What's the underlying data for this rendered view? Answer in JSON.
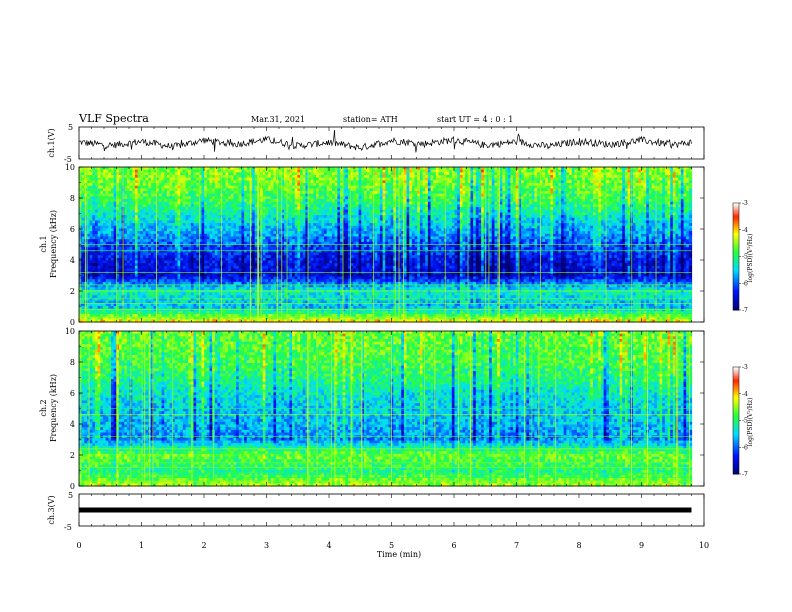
{
  "header": {
    "title": "VLF Spectra",
    "date": "Mar.31, 2021",
    "station": "station= ATH",
    "start": "start  UT  =   4 : 0  : 1"
  },
  "chart_data": [
    {
      "type": "line",
      "panel": "ch1-waveform",
      "ylabel": "ch.1(V)",
      "ylim": [
        -5,
        5
      ],
      "yticks": [
        "5",
        "-5"
      ],
      "xlim": [
        0,
        10
      ],
      "x": [
        0,
        0.5,
        1,
        1.5,
        2,
        2.5,
        3,
        3.5,
        4,
        4.5,
        5,
        5.5,
        6,
        6.5,
        7,
        7.5,
        8,
        8.5,
        9,
        9.5,
        9.8
      ],
      "values": [
        0.3,
        -0.8,
        0.5,
        -1.2,
        0.9,
        -0.4,
        1.1,
        -0.9,
        0.2,
        -1.5,
        0.8,
        -0.3,
        1.0,
        -0.7,
        0.4,
        -1.1,
        0.6,
        -0.5,
        0.9,
        -0.6,
        0.2
      ]
    },
    {
      "type": "heatmap",
      "panel": "ch1-spectrogram",
      "ylabel": "Frequency (kHz)",
      "channel_label": "ch.1",
      "ylim": [
        0,
        10
      ],
      "yticks": [
        "0",
        "2",
        "4",
        "6",
        "8",
        "10"
      ],
      "xlim": [
        0,
        10
      ],
      "zlim": [
        -7,
        -3
      ],
      "colorbar_ticks": [
        "-3",
        "-4",
        "-5",
        "-6",
        "-7"
      ],
      "colorbar_label": "log(PSD)(V²/Hz)",
      "freq_profile_khz": [
        0,
        1,
        2,
        3,
        4,
        5,
        6,
        7,
        8,
        9,
        10
      ],
      "freq_profile_level": [
        -4.0,
        -5.6,
        -5.2,
        -6.5,
        -6.4,
        -6.0,
        -5.6,
        -5.2,
        -4.8,
        -4.6,
        -4.5
      ]
    },
    {
      "type": "heatmap",
      "panel": "ch2-spectrogram",
      "ylabel": "Frequency (kHz)",
      "channel_label": "ch.2",
      "ylim": [
        0,
        10
      ],
      "yticks": [
        "0",
        "2",
        "4",
        "6",
        "8",
        "10"
      ],
      "xlim": [
        0,
        10
      ],
      "zlim": [
        -7,
        -3
      ],
      "colorbar_ticks": [
        "-3",
        "-4",
        "-5",
        "-6",
        "-7"
      ],
      "colorbar_label": "log(PSD)(V²/Hz)",
      "freq_profile_khz": [
        0,
        1,
        2,
        3,
        4,
        5,
        6,
        7,
        8,
        9,
        10
      ],
      "freq_profile_level": [
        -4.4,
        -5.0,
        -4.6,
        -5.8,
        -5.6,
        -5.5,
        -5.3,
        -5.0,
        -4.8,
        -4.7,
        -4.6
      ]
    },
    {
      "type": "line",
      "panel": "ch3-waveform",
      "ylabel": "ch.3(V)",
      "ylim": [
        -5,
        5
      ],
      "yticks": [
        "5",
        "-5"
      ],
      "xlim": [
        0,
        10
      ],
      "x": [
        0,
        9.8
      ],
      "values": [
        0,
        0
      ]
    }
  ],
  "xaxis": {
    "label": "Time (min)",
    "ticks": [
      "0",
      "1",
      "2",
      "3",
      "4",
      "5",
      "6",
      "7",
      "8",
      "9",
      "10"
    ]
  },
  "colors": {
    "background": "#ffffff",
    "axes": "#000000",
    "colormap": [
      "#000080",
      "#0000ff",
      "#00ffff",
      "#00ff00",
      "#ffff00",
      "#ff0000",
      "#ffffff"
    ]
  }
}
